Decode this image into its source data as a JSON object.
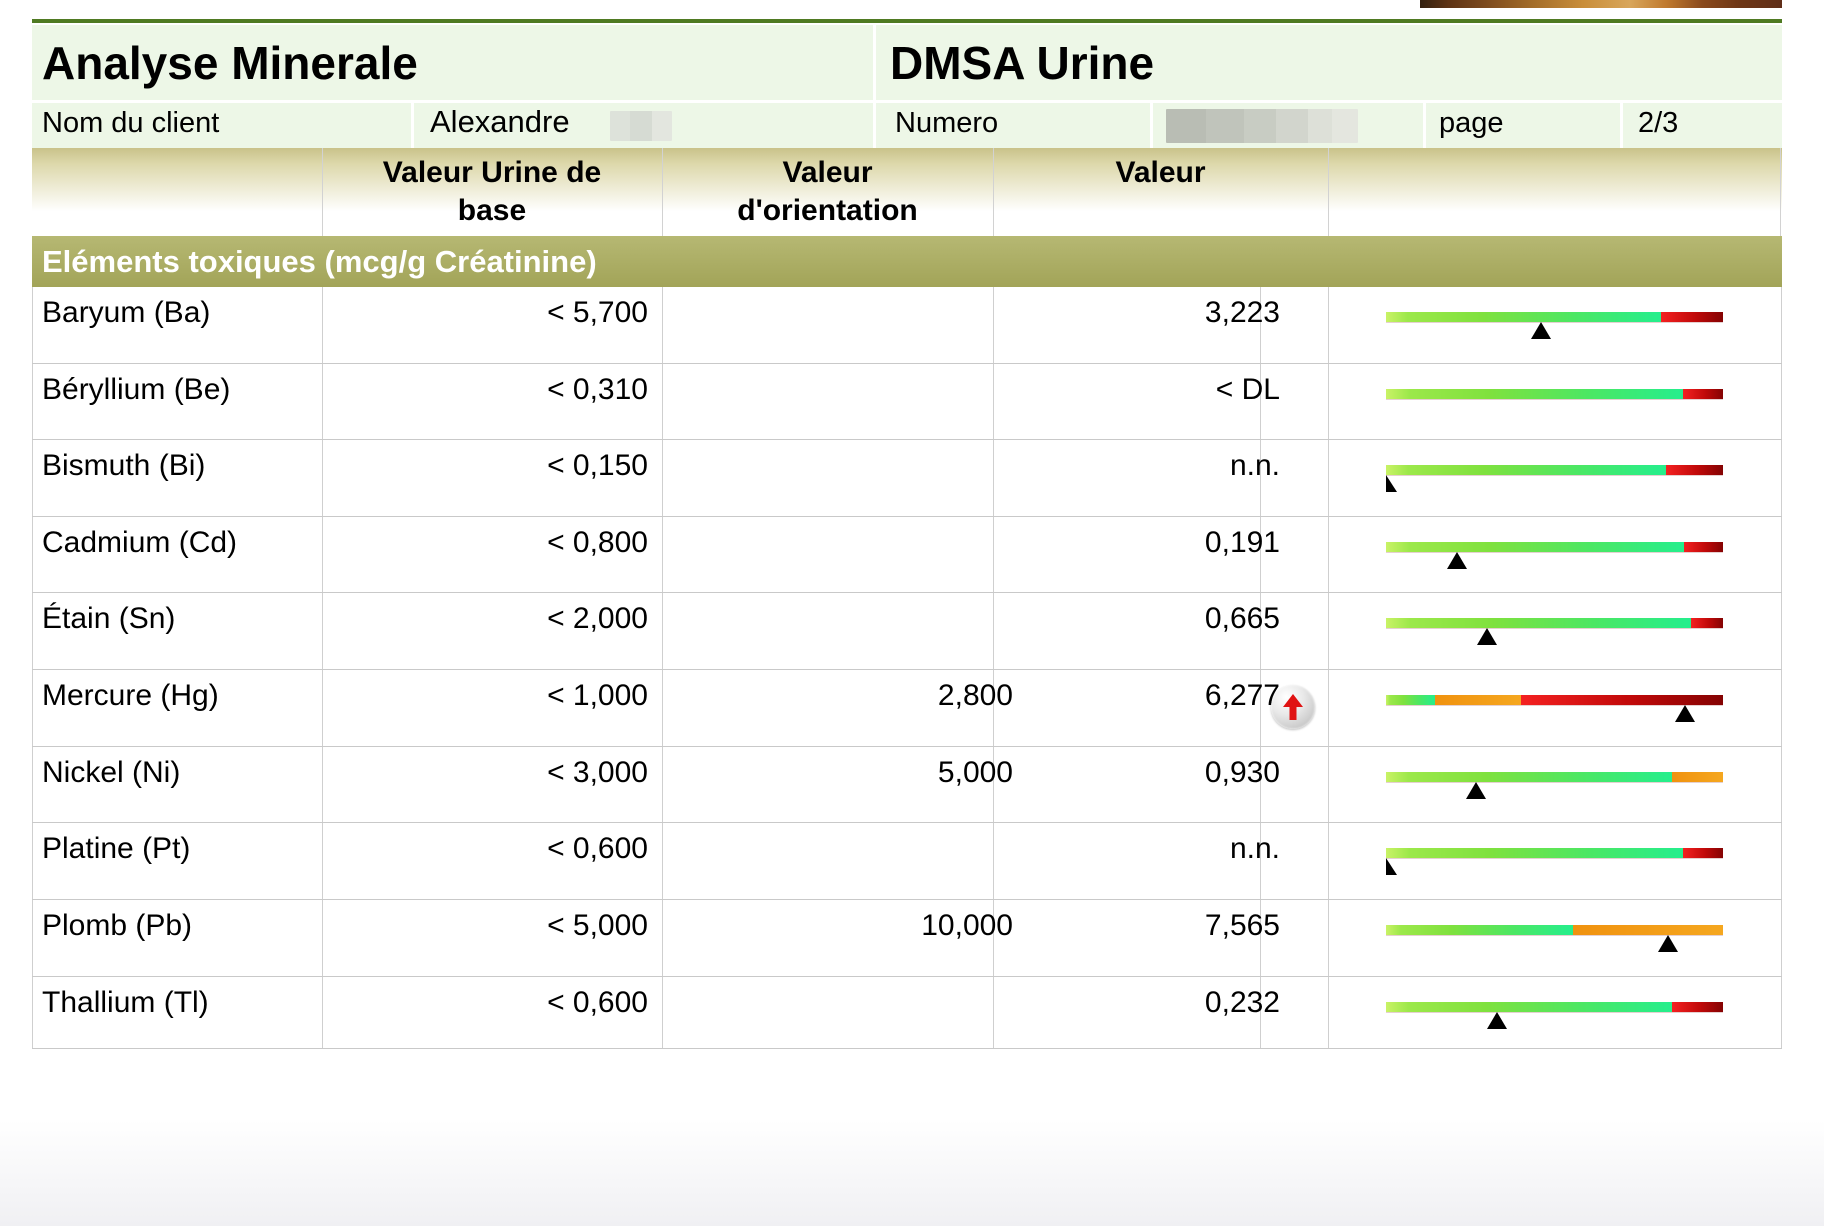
{
  "header": {
    "title_left": "Analyse Minerale",
    "title_right": "DMSA Urine"
  },
  "client_row": {
    "name_label": "Nom du client",
    "name_value": "Alexandre",
    "name_value_redacted": "redacted-block",
    "numero_label": "Numero",
    "numero_value_redacted": "redacted-block",
    "page_label": "page",
    "page_value": "2/3"
  },
  "columns": {
    "base_line1": "Valeur Urine de",
    "base_line2": "base",
    "orientation_line1": "Valeur",
    "orientation_line2": "d'orientation",
    "value": "Valeur"
  },
  "section": {
    "title": "Eléments toxiques (mcg/g Créatinine)"
  },
  "rows": [
    {
      "element": "Baryum (Ba)",
      "base": "< 5,700",
      "orientation": "",
      "value": "3,223",
      "flag": false,
      "marker": 0.46,
      "segments": [
        [
          "green",
          0.815
        ],
        [
          "red",
          0.185
        ]
      ]
    },
    {
      "element": "Béryllium (Be)",
      "base": "< 0,310",
      "orientation": "",
      "value": "< DL",
      "flag": false,
      "marker": null,
      "segments": [
        [
          "green",
          0.88
        ],
        [
          "red",
          0.12
        ]
      ]
    },
    {
      "element": "Bismuth (Bi)",
      "base": "< 0,150",
      "orientation": "",
      "value": "n.n.",
      "flag": false,
      "marker": 0.0,
      "segments": [
        [
          "green",
          0.83
        ],
        [
          "red",
          0.17
        ]
      ]
    },
    {
      "element": "Cadmium (Cd)",
      "base": "< 0,800",
      "orientation": "",
      "value": "0,191",
      "flag": false,
      "marker": 0.21,
      "segments": [
        [
          "green",
          0.885
        ],
        [
          "red",
          0.115
        ]
      ]
    },
    {
      "element": "Étain (Sn)",
      "base": "< 2,000",
      "orientation": "",
      "value": "0,665",
      "flag": false,
      "marker": 0.3,
      "segments": [
        [
          "green",
          0.905
        ],
        [
          "red",
          0.095
        ]
      ]
    },
    {
      "element": "Mercure (Hg)",
      "base": "< 1,000",
      "orientation": "2,800",
      "value": "6,277",
      "flag": true,
      "marker": 0.887,
      "segments": [
        [
          "green",
          0.145
        ],
        [
          "orange",
          0.255
        ],
        [
          "red",
          0.6
        ]
      ]
    },
    {
      "element": "Nickel (Ni)",
      "base": "< 3,000",
      "orientation": "5,000",
      "value": "0,930",
      "flag": false,
      "marker": 0.267,
      "segments": [
        [
          "green",
          0.85
        ],
        [
          "orange",
          0.15
        ]
      ]
    },
    {
      "element": "Platine (Pt)",
      "base": "< 0,600",
      "orientation": "",
      "value": "n.n.",
      "flag": false,
      "marker": 0.0,
      "segments": [
        [
          "green",
          0.88
        ],
        [
          "red",
          0.12
        ]
      ]
    },
    {
      "element": "Plomb (Pb)",
      "base": "< 5,000",
      "orientation": "10,000",
      "value": "7,565",
      "flag": false,
      "marker": 0.837,
      "segments": [
        [
          "green",
          0.555
        ],
        [
          "orange",
          0.445
        ]
      ]
    },
    {
      "element": "Thallium (Tl)",
      "base": "< 0,600",
      "orientation": "",
      "value": "0,232",
      "flag": false,
      "marker": 0.33,
      "segments": [
        [
          "green",
          0.85
        ],
        [
          "red",
          0.15
        ]
      ]
    }
  ],
  "colors": {
    "rule_green": "#4f7a22",
    "panel_green": "#edf7e7",
    "colhead_olive": "#c9c28a",
    "section_olive": "#a8aa63",
    "bar_green_start": "#c9f266",
    "bar_green_end": "#25ee8d",
    "bar_red_start": "#f42121",
    "bar_red_end": "#840303",
    "bar_orange": "#f4a11b",
    "marker_black": "#000000",
    "flag_arrow_red": "#e01212",
    "grid_gray": "#cfcfcf"
  }
}
